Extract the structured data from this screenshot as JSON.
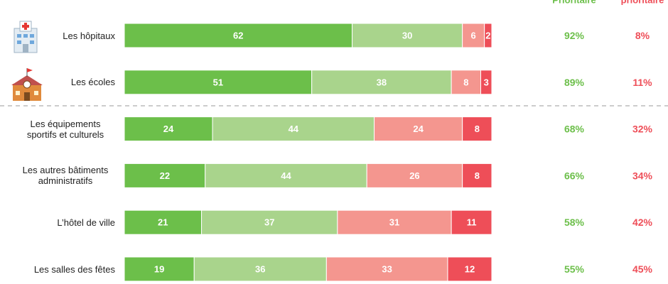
{
  "chart_data": {
    "type": "stacked-bar",
    "headers": [
      "Prioritaire",
      "prioritaire"
    ],
    "categories": [
      "Les hôpitaux",
      "Les écoles",
      "Les équipements sportifs et culturels",
      "Les autres bâtiments administratifs",
      "L’hôtel de ville",
      "Les salles des fêtes"
    ],
    "xlim": [
      0,
      100
    ],
    "series": [
      {
        "color": "#6cbf4a",
        "values": [
          62,
          51,
          24,
          22,
          21,
          19
        ]
      },
      {
        "color": "#a9d48c",
        "values": [
          30,
          38,
          44,
          44,
          37,
          36
        ]
      },
      {
        "color": "#f4968f",
        "values": [
          6,
          8,
          24,
          26,
          31,
          33
        ]
      },
      {
        "color": "#ee4e58",
        "values": [
          2,
          3,
          8,
          8,
          11,
          12
        ]
      }
    ],
    "totals": [
      {
        "color": "#6cbf4a",
        "values": [
          92,
          89,
          68,
          66,
          58,
          55
        ],
        "value_labels": [
          "92%",
          "89%",
          "68%",
          "66%",
          "58%",
          "55%"
        ]
      },
      {
        "color": "#ee4e58",
        "values": [
          8,
          11,
          32,
          34,
          42,
          45
        ],
        "value_labels": [
          "8%",
          "11%",
          "32%",
          "34%",
          "42%",
          "45%"
        ]
      }
    ]
  }
}
